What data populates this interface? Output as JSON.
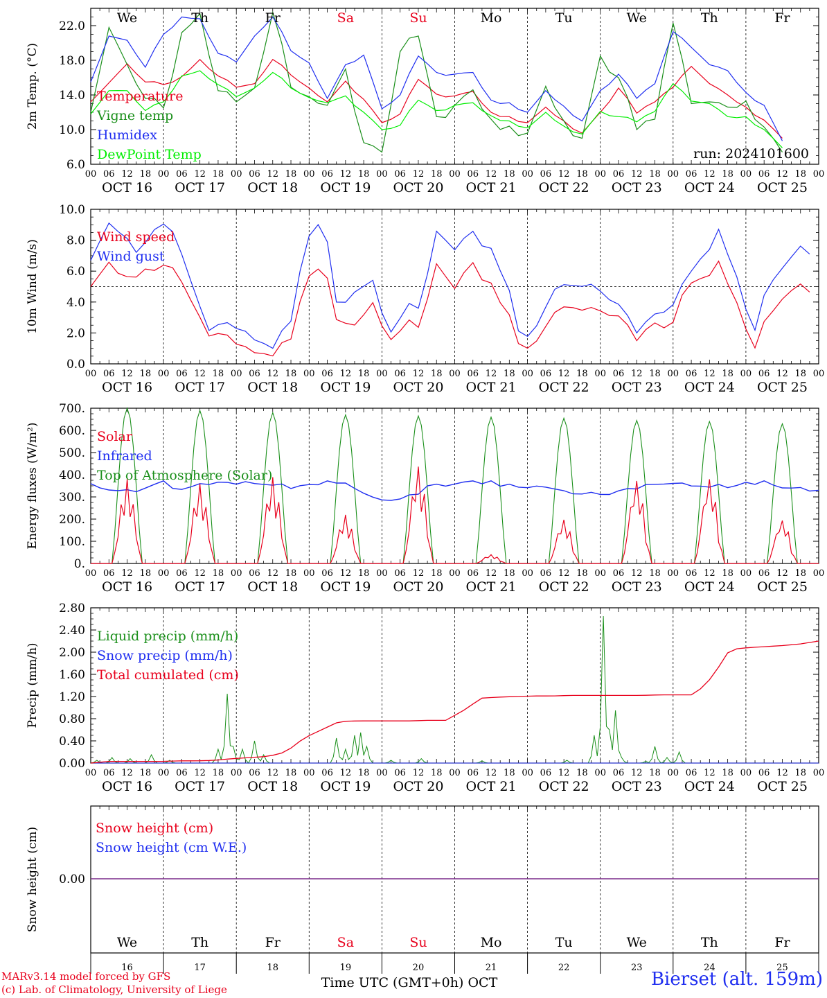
{
  "chart_data": {
    "type": "line",
    "run": "run: 2024101600",
    "x_time_axis": {
      "hours": [
        "00",
        "06",
        "12",
        "18"
      ],
      "dates": [
        "OCT 16",
        "OCT 17",
        "OCT 18",
        "OCT 19",
        "OCT 20",
        "OCT 21",
        "OCT 22",
        "OCT 23",
        "OCT 24",
        "OCT 25"
      ],
      "weekdays": [
        "We",
        "Th",
        "Fr",
        "Sa",
        "Su",
        "Mo",
        "Tu",
        "We",
        "Th",
        "Fr"
      ],
      "weekend_days": [
        "Sa",
        "Su"
      ],
      "day_numbers": [
        "16",
        "17",
        "18",
        "19",
        "20",
        "21",
        "22",
        "23",
        "24",
        "25"
      ],
      "xlabel": "Time UTC (GMT+0h)",
      "month": "OCT"
    },
    "panels": [
      {
        "id": "temperature",
        "ylabel": "2m Temp. (°C)",
        "ylim": [
          6.0,
          24.0
        ],
        "yticks": [
          "6.0",
          "10.0",
          "14.0",
          "18.0",
          "22.0"
        ],
        "ytick_values": [
          6,
          10,
          14,
          18,
          22
        ],
        "series": [
          {
            "name": "Temperature",
            "color": "#e8001c",
            "step_hours": 6,
            "values": [
              13.2,
              15.4,
              17.6,
              15.5,
              15.2,
              16.1,
              18.1,
              16.2,
              14.9,
              15.3,
              18.1,
              16.3,
              14.8,
              13.2,
              15.6,
              13.5,
              10.8,
              11.8,
              15.8,
              14.1,
              13.9,
              14.4,
              12.0,
              11.5,
              10.8,
              12.6,
              11.0,
              9.6,
              12.0,
              14.8,
              11.9,
              13.2,
              14.9,
              17.3,
              15.3,
              14.0,
              12.6,
              11.1,
              9.0
            ]
          },
          {
            "name": "Vigne temp",
            "color": "#1a8f1a",
            "step_hours": 6,
            "values": [
              12.0,
              21.8,
              17.5,
              13.6,
              12.5,
              21.2,
              23.4,
              14.5,
              13.2,
              14.8,
              23.5,
              14.9,
              13.8,
              12.8,
              17.0,
              8.5,
              7.4,
              19.0,
              20.8,
              11.5,
              12.8,
              14.6,
              11.2,
              10.4,
              9.6,
              15.0,
              11.0,
              9.0,
              18.5,
              16.0,
              10.0,
              11.2,
              22.3,
              13.0,
              13.2,
              12.6,
              13.3,
              10.3,
              7.4
            ]
          },
          {
            "name": "Humidex",
            "color": "#1f2ef0",
            "step_hours": 6,
            "values": [
              15.5,
              20.8,
              20.3,
              17.2,
              21.0,
              23.0,
              22.8,
              18.8,
              17.8,
              20.8,
              23.0,
              19.1,
              17.7,
              13.6,
              17.5,
              18.6,
              12.4,
              14.0,
              18.5,
              16.6,
              16.4,
              16.6,
              13.4,
              13.1,
              12.0,
              14.5,
              12.7,
              11.0,
              14.5,
              16.4,
              13.6,
              15.3,
              21.3,
              19.5,
              17.5,
              16.8,
              14.3,
              12.8,
              8.7
            ]
          },
          {
            "name": "DewPoint Temp",
            "color": "#00ee00",
            "step_hours": 6,
            "values": [
              11.8,
              14.5,
              14.5,
              12.2,
              13.2,
              16.2,
              16.8,
              15.2,
              13.8,
              14.8,
              16.6,
              14.8,
              13.7,
              13.1,
              13.9,
              12.0,
              10.0,
              10.5,
              13.4,
              12.2,
              12.8,
              13.1,
              11.6,
              11.0,
              10.2,
              12.0,
              10.4,
              9.5,
              12.1,
              11.5,
              10.9,
              12.1,
              15.3,
              13.3,
              13.0,
              11.5,
              11.5,
              10.0,
              7.9
            ]
          }
        ]
      },
      {
        "id": "wind",
        "ylabel": "10m Wind (m/s)",
        "ylim": [
          0.0,
          10.0
        ],
        "yticks": [
          "0.0",
          "2.0",
          "4.0",
          "6.0",
          "8.0",
          "10.0"
        ],
        "ytick_values": [
          0,
          2,
          4,
          6,
          8,
          10
        ],
        "reference_line": 5.0,
        "series": [
          {
            "name": "Wind speed",
            "color": "#e8001c",
            "step_hours": 6,
            "values": [
              5.0,
              6.5,
              5.5,
              5.8,
              5.8,
              6.5,
              4.3,
              2.0,
              1.8,
              1.2,
              1.0,
              0.5,
              1.5,
              5.5,
              6.5,
              2.2,
              2.8,
              4.0,
              1.6,
              2.5,
              2.7,
              6.8,
              5.0,
              6.5,
              5.2,
              4.0,
              1.2,
              1.5,
              3.5,
              4.0,
              3.6,
              3.7,
              2.8,
              1.5,
              2.5,
              2.0,
              5.0,
              5.6,
              6.6,
              4.3,
              1.0,
              3.0,
              4.5,
              5.0,
              4.6
            ]
          },
          {
            "name": "Wind gust",
            "color": "#1f2ef0",
            "step_hours": 6,
            "values": [
              6.7,
              9.0,
              8.3,
              7.0,
              8.7,
              8.8,
              5.6,
              2.3,
              2.5,
              2.3,
              1.8,
              1.0,
              2.5,
              8.0,
              9.5,
              3.0,
              5.0,
              5.5,
              2.0,
              3.5,
              4.0,
              9.0,
              7.5,
              8.5,
              7.5,
              6.0,
              1.8,
              2.5,
              5.0,
              5.4,
              5.2,
              4.9,
              3.5,
              2.0,
              3.0,
              3.3,
              5.5,
              7.0,
              8.7,
              6.0,
              2.0,
              5.0,
              6.5,
              7.5,
              7.0
            ]
          }
        ]
      },
      {
        "id": "energy",
        "ylabel": "Energy fluxes (W/m²)",
        "ylim": [
          0.0,
          700.0
        ],
        "yticks": [
          "0.",
          "100.",
          "200.",
          "300.",
          "400.",
          "500.",
          "600.",
          "700."
        ],
        "ytick_values": [
          0,
          100,
          200,
          300,
          400,
          500,
          600,
          700
        ],
        "series": [
          {
            "name": "Solar",
            "color": "#e8001c",
            "daily_peak_W_m2": [
              380,
              360,
              390,
              220,
              440,
              40,
              200,
              380,
              390,
              200
            ]
          },
          {
            "name": "Infrared",
            "color": "#1f2ef0",
            "step_hours": 6,
            "values": [
              360,
              325,
              330,
              325,
              365,
              335,
              355,
              365,
              355,
              375,
              355,
              345,
              355,
              360,
              362,
              345,
              290,
              290,
              300,
              350,
              360,
              365,
              367,
              360,
              355,
              350,
              345,
              325,
              320,
              320,
              320,
              350,
              350,
              360,
              345,
              355,
              350,
              370,
              360,
              340,
              335,
              330
            ]
          },
          {
            "name": "Top of Atmosphere (Solar)",
            "color": "#1a8f1a",
            "daily_peak_W_m2": [
              700,
              690,
              680,
              670,
              665,
              660,
              655,
              645,
              640,
              630
            ]
          }
        ]
      },
      {
        "id": "precip",
        "ylabel": "Precip (mm/h)",
        "ylim": [
          0.0,
          2.8
        ],
        "yticks": [
          "0.00",
          "0.40",
          "0.80",
          "1.20",
          "1.60",
          "2.00",
          "2.40",
          "2.80"
        ],
        "ytick_values": [
          0,
          0.4,
          0.8,
          1.2,
          1.6,
          2.0,
          2.4,
          2.8
        ],
        "series": [
          {
            "name": "Liquid precip (mm/h)",
            "color": "#1a8f1a",
            "spikes": [
              [
                1.5,
                0.05
              ],
              [
                7,
                0.1
              ],
              [
                13,
                0.08
              ],
              [
                20,
                0.15
              ],
              [
                26,
                0.05
              ],
              [
                42,
                0.25
              ],
              [
                45,
                1.25
              ],
              [
                47,
                0.3
              ],
              [
                50,
                0.25
              ],
              [
                54,
                0.4
              ],
              [
                57,
                0.15
              ],
              [
                81,
                0.45
              ],
              [
                84,
                0.25
              ],
              [
                87,
                0.5
              ],
              [
                89,
                0.55
              ],
              [
                91,
                0.3
              ],
              [
                99,
                0.05
              ],
              [
                109,
                0.08
              ],
              [
                129,
                0.04
              ],
              [
                157,
                0.05
              ],
              [
                166,
                0.5
              ],
              [
                169,
                2.65
              ],
              [
                171,
                0.6
              ],
              [
                173,
                0.95
              ],
              [
                175,
                0.1
              ],
              [
                183,
                0.03
              ],
              [
                186,
                0.3
              ],
              [
                190,
                0.1
              ],
              [
                194,
                0.2
              ]
            ]
          },
          {
            "name": "Snow precip (mm/h)",
            "color": "#1f2ef0",
            "values": [
              0
            ]
          },
          {
            "name": "Total cumulated (cm)",
            "color": "#e8001c",
            "step_hours": 6,
            "values": [
              0.0,
              0.03,
              0.03,
              0.03,
              0.03,
              0.04,
              0.04,
              0.05,
              0.08,
              0.1,
              0.12,
              0.2,
              0.45,
              0.6,
              0.75,
              0.76,
              0.76,
              0.76,
              0.76,
              0.77,
              0.77,
              0.95,
              1.17,
              1.19,
              1.2,
              1.21,
              1.21,
              1.22,
              1.22,
              1.22,
              1.22,
              1.22,
              1.23,
              1.23,
              1.23,
              1.55,
              2.05,
              2.08,
              2.1,
              2.12,
              2.15,
              2.2
            ]
          }
        ]
      },
      {
        "id": "snow",
        "ylabel": "Snow height (cm)",
        "yticks": [
          "0.00"
        ],
        "series": [
          {
            "name": "Snow height (cm)",
            "color": "#e8001c",
            "values": [
              0.0
            ]
          },
          {
            "name": "Snow height (cm W.E.)",
            "color": "#1f2ef0",
            "values": [
              0.0
            ]
          }
        ]
      }
    ]
  },
  "footer": {
    "credits_line1": "MARv3.14 model forced by GFS",
    "credits_line2": "(c) Lab. of Climatology, University of Liege",
    "station": "Bierset (alt. 159m)"
  },
  "colors": {
    "red": "#e8001c",
    "blue": "#1f2ef0",
    "green": "#1a8f1a",
    "lightgreen": "#00ee00",
    "snowline": "#7a2a8a"
  }
}
